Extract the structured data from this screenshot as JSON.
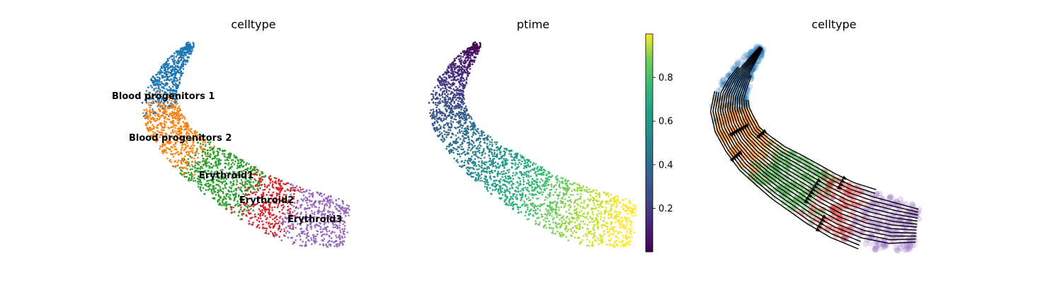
{
  "chart_data": [
    {
      "type": "scatter",
      "title": "celltype",
      "color_by": "celltype",
      "groups": [
        {
          "name": "Blood progenitors 1",
          "color": "#1f77b4",
          "label": "Blood progenitors 1"
        },
        {
          "name": "Blood progenitors 2",
          "color": "#ff7f0e",
          "label": "Blood progenitors 2"
        },
        {
          "name": "Erythroid1",
          "color": "#2ca02c",
          "label": "Erythroid1"
        },
        {
          "name": "Erythroid2",
          "color": "#d62728",
          "label": "Erythroid2"
        },
        {
          "name": "Erythroid3",
          "color": "#9467bd",
          "label": "Erythroid3"
        }
      ],
      "labels_on_data": true,
      "axes_visible": false
    },
    {
      "type": "scatter",
      "title": "ptime",
      "color_by": "ptime",
      "colormap": "viridis",
      "colorbar": {
        "range": [
          0.0,
          1.0
        ],
        "ticks": [
          "0.2",
          "0.4",
          "0.6",
          "0.8"
        ]
      },
      "axes_visible": false
    },
    {
      "type": "scatter",
      "title": "celltype",
      "color_by": "celltype",
      "overlay": "velocity streamlines with arrows",
      "point_style": "large translucent",
      "axes_visible": false
    }
  ]
}
